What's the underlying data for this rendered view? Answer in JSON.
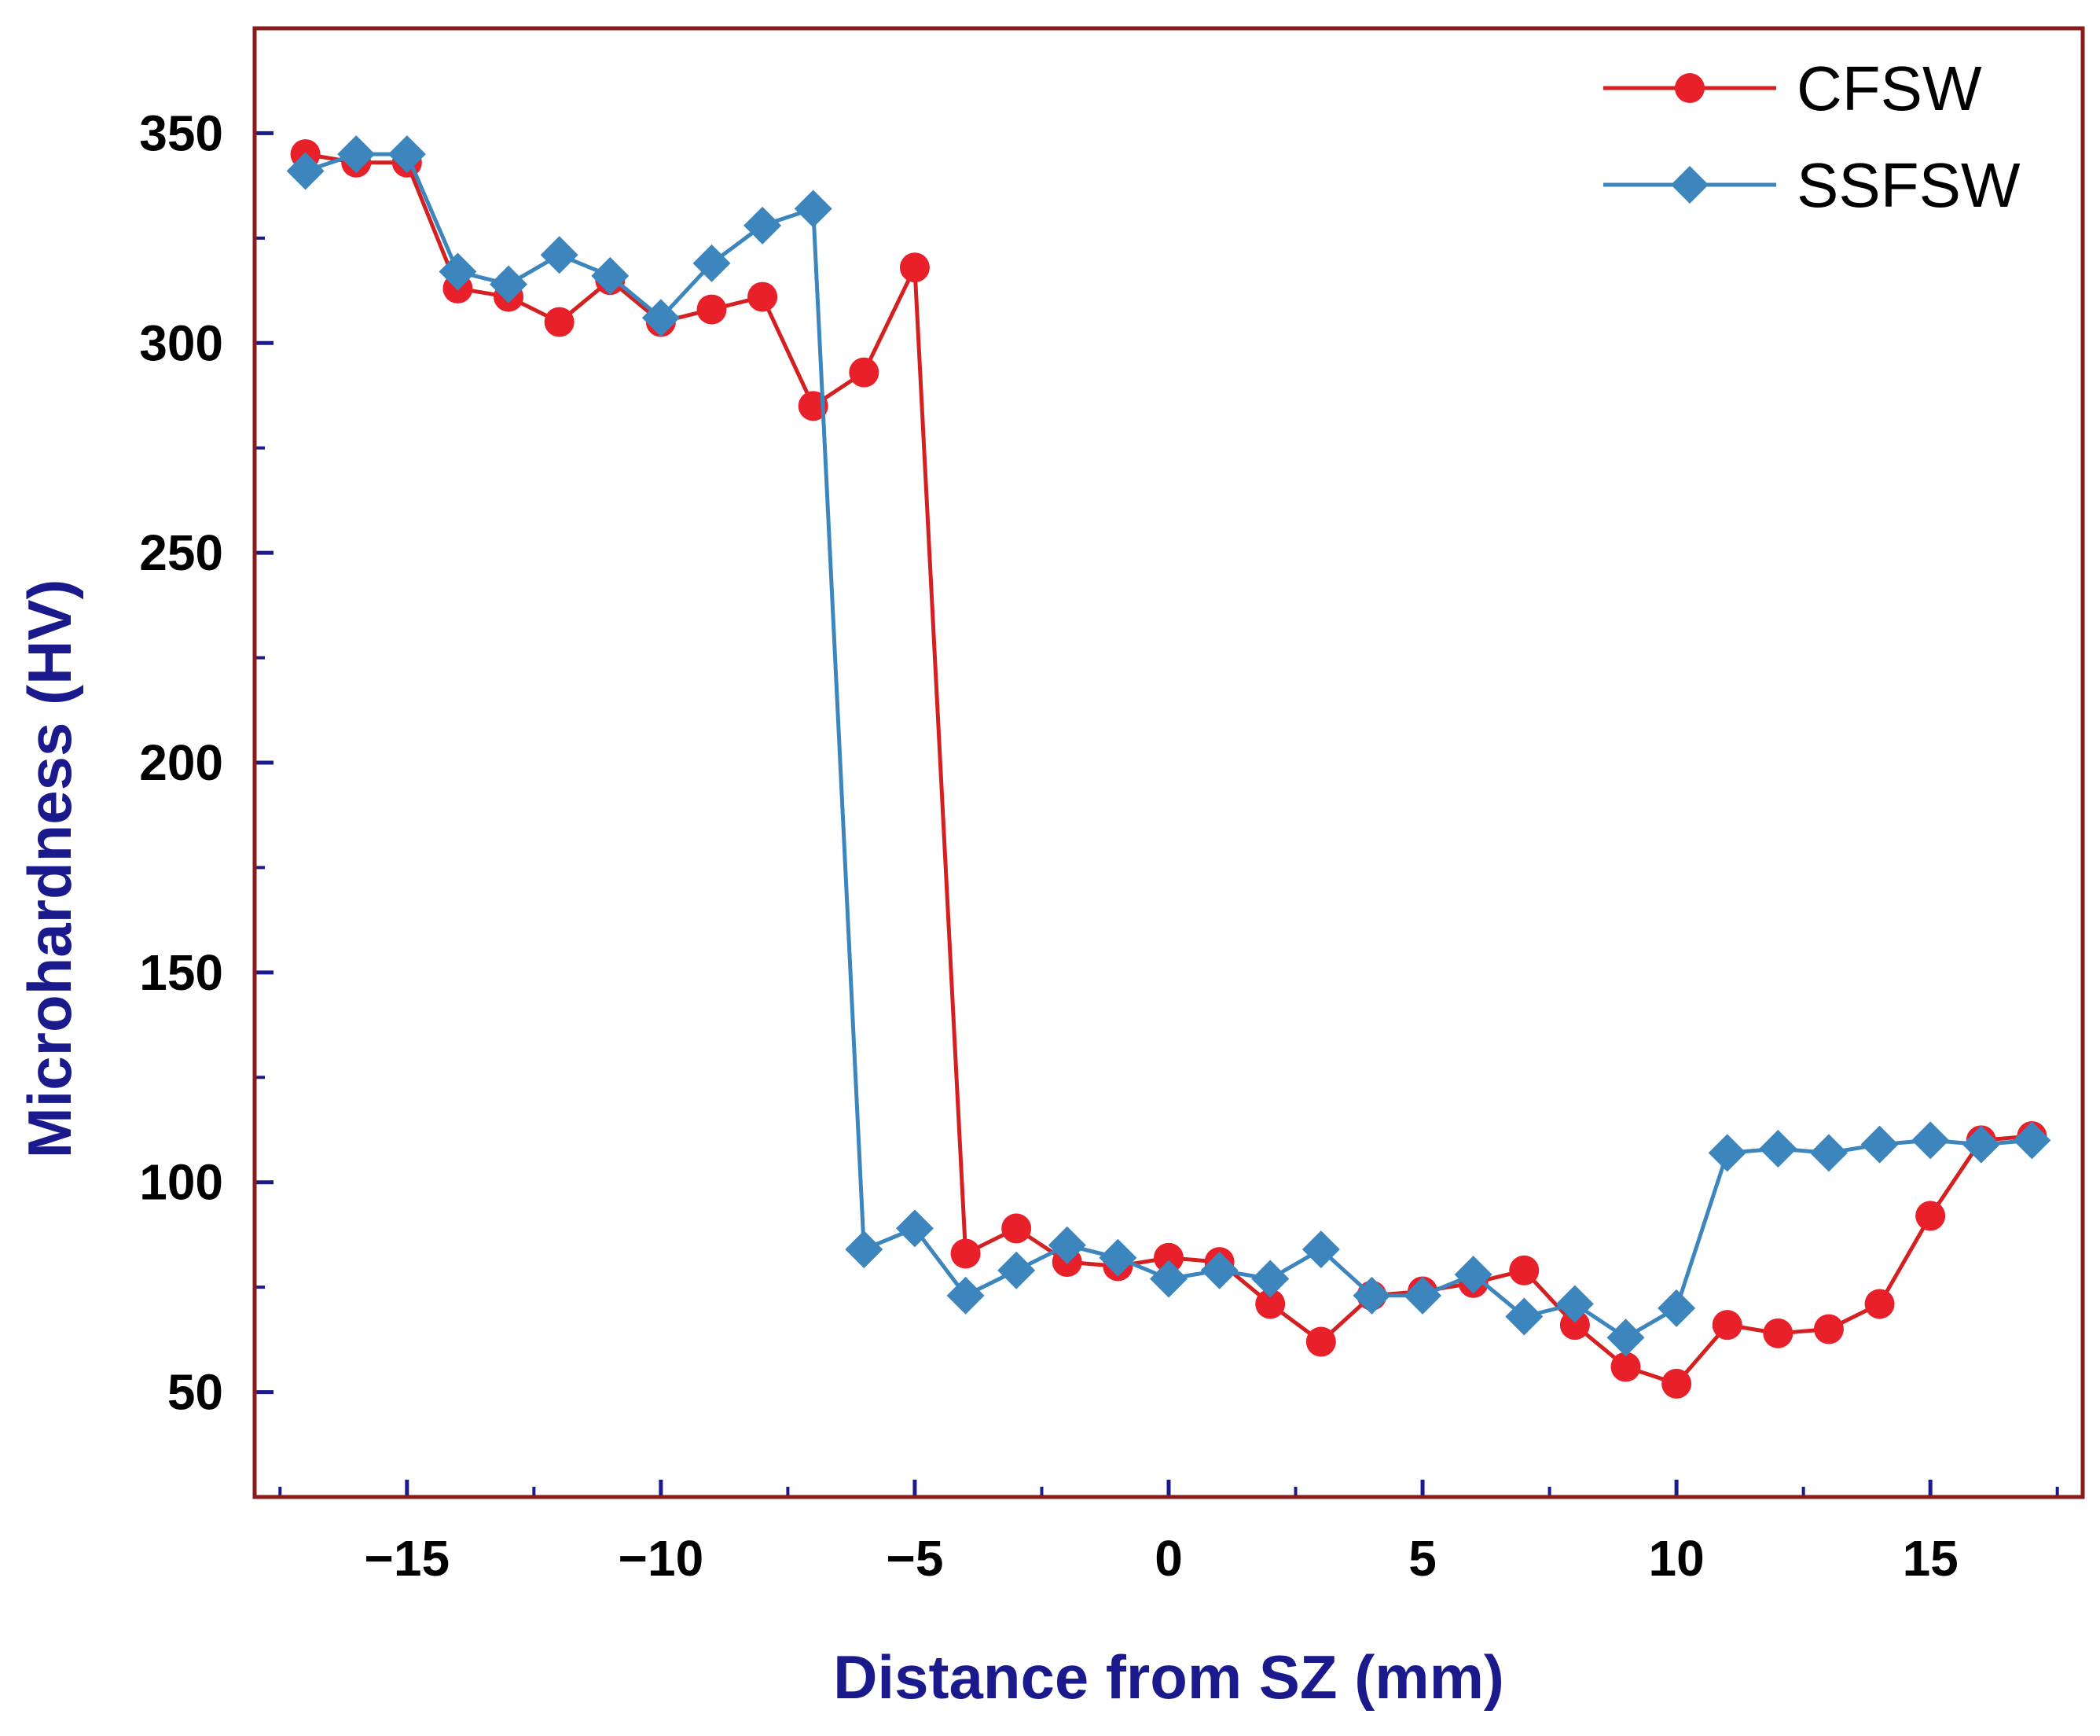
{
  "chart_data": {
    "type": "line",
    "title": "",
    "xlabel": "Distance from SZ (mm)",
    "ylabel": "Microhardness (HV)",
    "xlim": [
      -18,
      18
    ],
    "ylim": [
      25,
      375
    ],
    "x_ticks": [
      -15,
      -10,
      -5,
      0,
      5,
      10,
      15
    ],
    "x_tick_labels": [
      "−15",
      "−10",
      "−5",
      "0",
      "5",
      "10",
      "15"
    ],
    "y_ticks": [
      50,
      100,
      150,
      200,
      250,
      300,
      350
    ],
    "y_tick_labels": [
      "50",
      "100",
      "150",
      "200",
      "250",
      "300",
      "350"
    ],
    "legend_position": "top-right",
    "colors": {
      "axis": "#8b1a1a",
      "tick_mark": "#1a1a8c",
      "axis_title": "#1a1a8c"
    },
    "series": [
      {
        "name": "CFSW",
        "color": "#e8202a",
        "line_color": "#d42020",
        "marker": "circle",
        "x": [
          -17,
          -16,
          -15,
          -14,
          -13,
          -12,
          -11,
          -10,
          -9,
          -8,
          -7,
          -6,
          -5,
          -4,
          -3,
          -2,
          -1,
          0,
          1,
          2,
          3,
          4,
          5,
          6,
          7,
          8,
          9,
          10,
          11,
          12,
          13,
          14,
          15,
          16,
          17
        ],
        "values": [
          345,
          343,
          343,
          313,
          311,
          305,
          315,
          305,
          308,
          311,
          285,
          293,
          318,
          83,
          89,
          81,
          80,
          82,
          81,
          71,
          62,
          73,
          74,
          76,
          79,
          66,
          56,
          52,
          66,
          64,
          65,
          71,
          92,
          110,
          111
        ]
      },
      {
        "name": "SSFSW",
        "color": "#3d86bd",
        "line_color": "#3d86bd",
        "marker": "diamond",
        "x": [
          -17,
          -16,
          -15,
          -14,
          -13,
          -12,
          -11,
          -10,
          -9,
          -8,
          -7,
          -6,
          -5,
          -4,
          -3,
          -2,
          -1,
          0,
          1,
          2,
          3,
          4,
          5,
          6,
          7,
          8,
          9,
          10,
          11,
          12,
          13,
          14,
          15,
          16,
          17
        ],
        "values": [
          341,
          345,
          345,
          317,
          314,
          321,
          316,
          306,
          319,
          328,
          332,
          84,
          89,
          73,
          79,
          85,
          82,
          77,
          79,
          77,
          84,
          73,
          73,
          78,
          68,
          71,
          63,
          70,
          107,
          108,
          107,
          109,
          110,
          109,
          110
        ]
      }
    ]
  }
}
